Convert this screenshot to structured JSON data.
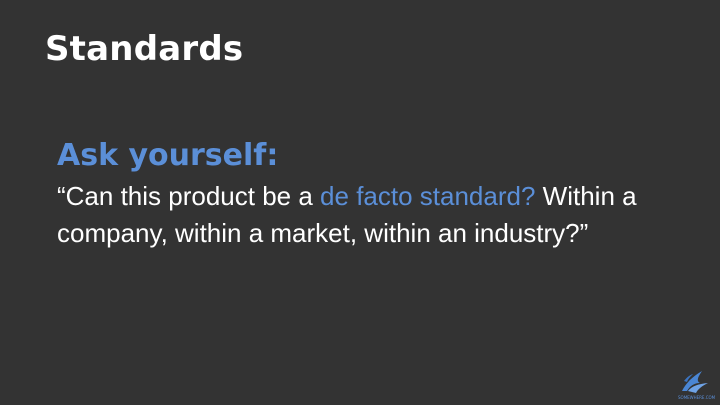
{
  "slide": {
    "title": "Standards",
    "subheading": "Ask yourself:",
    "quote": {
      "open": "“Can this product be a ",
      "highlight": "de facto standard?",
      "rest": " Within a company, within a market, within an industry?”"
    },
    "logo": {
      "icon": "bird-logo-icon",
      "text": "SOMEWHERE.COM"
    }
  },
  "colors": {
    "background": "#333333",
    "title": "#ffffff",
    "accent": "#5b8fd8",
    "body": "#ffffff"
  }
}
